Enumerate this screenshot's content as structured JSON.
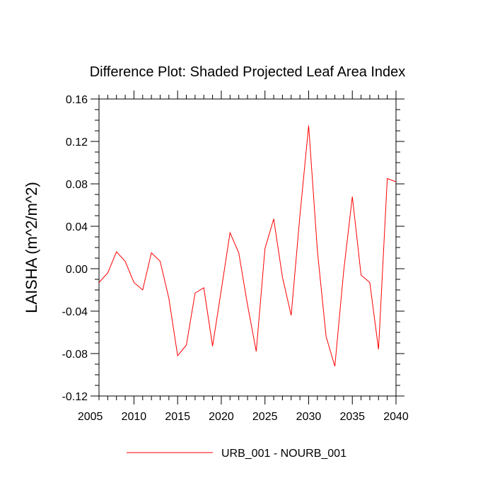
{
  "chart_data": {
    "type": "line",
    "title": "Difference Plot: Shaded Projected Leaf Area Index",
    "xlabel": "",
    "ylabel": "LAISHA  (m^2/m^2)",
    "xlim": [
      2006,
      2040
    ],
    "ylim": [
      -0.12,
      0.16
    ],
    "x_ticks": [
      "2005",
      "2010",
      "2015",
      "2020",
      "2025",
      "2030",
      "2035",
      "2040"
    ],
    "y_ticks": [
      "0.16",
      "0.12",
      "0.08",
      "0.04",
      "0.00",
      "-0.04",
      "-0.08",
      "-0.12"
    ],
    "grid": false,
    "legend_position": "bottom",
    "series": [
      {
        "name": "URB_001 - NOURB_001",
        "color": "#ff0000",
        "x": [
          2006,
          2007,
          2008,
          2009,
          2010,
          2011,
          2012,
          2013,
          2014,
          2015,
          2016,
          2017,
          2018,
          2019,
          2020,
          2021,
          2022,
          2023,
          2024,
          2025,
          2026,
          2027,
          2028,
          2029,
          2030,
          2031,
          2032,
          2033,
          2034,
          2035,
          2036,
          2037,
          2038,
          2039,
          2040
        ],
        "values": [
          -0.013,
          -0.004,
          0.016,
          0.007,
          -0.013,
          -0.02,
          0.015,
          0.007,
          -0.028,
          -0.082,
          -0.072,
          -0.023,
          -0.018,
          -0.073,
          -0.02,
          0.034,
          0.015,
          -0.034,
          -0.078,
          0.019,
          0.047,
          -0.008,
          -0.044,
          0.05,
          0.135,
          0.017,
          -0.064,
          -0.092,
          -0.003,
          0.068,
          -0.006,
          -0.013,
          -0.076,
          0.085,
          0.082
        ]
      }
    ]
  }
}
